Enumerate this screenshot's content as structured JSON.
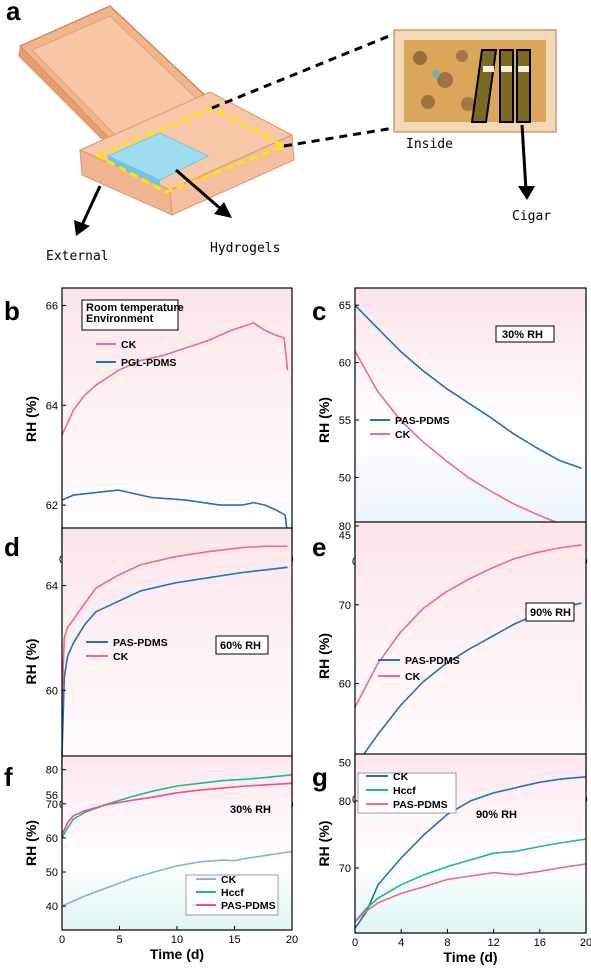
{
  "panel_a": {
    "label": "a",
    "labels": {
      "external": "External",
      "hydrogels": "Hydrogels",
      "inside": "Inside",
      "cigar": "Cigar"
    }
  },
  "colors": {
    "red": "#ee6d84",
    "blue": "#1e73be",
    "green": "#20b98a",
    "lightblue": "#8ab0e0",
    "pink": "#f0507a"
  },
  "chart_data": [
    {
      "panel": "b",
      "type": "line",
      "xlabel": "Time (d)",
      "ylabel": "RH (%)",
      "xlim": [
        0,
        20.4
      ],
      "ylim": [
        61.1,
        66.35
      ],
      "xticks": [
        0,
        5,
        10,
        15,
        20
      ],
      "yticks": [
        62,
        64,
        66
      ],
      "annotation": [
        "Room temperature",
        "Environment"
      ],
      "series": [
        {
          "name": "CK",
          "color": "#ee6d84",
          "x": [
            0,
            1,
            2,
            3,
            5,
            7,
            9,
            11,
            13,
            15,
            17,
            18,
            19,
            19.7,
            20
          ],
          "y": [
            63.4,
            63.9,
            64.2,
            64.4,
            64.7,
            64.9,
            65.0,
            65.15,
            65.3,
            65.5,
            65.65,
            65.5,
            65.4,
            65.35,
            64.7
          ]
        },
        {
          "name": "PGL-PDMS",
          "color": "#1e73be",
          "x": [
            0,
            1,
            3,
            5,
            8,
            11,
            14,
            16,
            17,
            18,
            19,
            19.8,
            20
          ],
          "y": [
            62.1,
            62.2,
            62.25,
            62.3,
            62.15,
            62.1,
            62.0,
            62.0,
            62.05,
            62.0,
            61.9,
            61.8,
            61.4
          ]
        }
      ],
      "legend": [
        "CK",
        "PGL-PDMS"
      ]
    },
    {
      "panel": "c",
      "type": "line",
      "xlabel": "Time (d)",
      "ylabel": "RH (%)",
      "xlim": [
        0,
        20.4
      ],
      "ylim": [
        43.5,
        66.5
      ],
      "xticks": [
        0,
        5,
        10,
        15,
        20
      ],
      "yticks": [
        45,
        50,
        55,
        60,
        65
      ],
      "annotation": [
        "30% RH"
      ],
      "series": [
        {
          "name": "PAS-PDMS",
          "color": "#1e73be",
          "x": [
            0,
            2,
            4,
            6,
            8,
            10,
            12,
            14,
            16,
            18,
            20
          ],
          "y": [
            65,
            63,
            61,
            59.3,
            57.8,
            56.5,
            55.2,
            53.8,
            52.6,
            51.5,
            50.8
          ]
        },
        {
          "name": "CK",
          "color": "#ee6d84",
          "x": [
            0,
            2,
            4,
            6,
            8,
            10,
            12,
            14,
            16,
            18,
            20
          ],
          "y": [
            61,
            57.5,
            55,
            53.1,
            51.5,
            50,
            48.8,
            47.7,
            46.8,
            46,
            45.4
          ]
        }
      ],
      "legend": [
        "PAS-PDMS",
        "CK"
      ]
    },
    {
      "panel": "d",
      "type": "line",
      "xlabel": "Time (d)",
      "ylabel": "RH (%)",
      "xlim": [
        0,
        20.4
      ],
      "ylim": [
        56,
        66.2
      ],
      "xticks": [
        0,
        5,
        10,
        15,
        20
      ],
      "yticks": [
        56,
        60,
        64
      ],
      "annotation": [
        "60% RH"
      ],
      "series": [
        {
          "name": "PAS-PDMS",
          "color": "#1e73be",
          "x": [
            0,
            0.2,
            0.5,
            1,
            2,
            3,
            5,
            7,
            10,
            13,
            16,
            18,
            20
          ],
          "y": [
            57.5,
            60.5,
            61.3,
            61.8,
            62.5,
            63.0,
            63.4,
            63.8,
            64.1,
            64.3,
            64.5,
            64.6,
            64.7
          ]
        },
        {
          "name": "CK",
          "color": "#ee6d84",
          "x": [
            0,
            0.2,
            0.5,
            1,
            2,
            3,
            5,
            7,
            10,
            13,
            16,
            18,
            20
          ],
          "y": [
            59.5,
            62.0,
            62.4,
            62.7,
            63.3,
            63.9,
            64.4,
            64.8,
            65.1,
            65.3,
            65.45,
            65.5,
            65.5
          ]
        }
      ],
      "legend": [
        "PAS-PDMS",
        "CK"
      ]
    },
    {
      "panel": "e",
      "type": "line",
      "xlabel": "Time (d)",
      "ylabel": "RH (%)",
      "xlim": [
        0,
        20.4
      ],
      "ylim": [
        46.5,
        80.5
      ],
      "xticks": [
        0,
        5,
        10,
        15,
        20
      ],
      "yticks": [
        50,
        60,
        70,
        80
      ],
      "annotation": [
        "90% RH"
      ],
      "series": [
        {
          "name": "PAS-PDMS",
          "color": "#1e73be",
          "x": [
            0,
            2,
            4,
            6,
            8,
            10,
            12,
            14,
            16,
            18,
            20
          ],
          "y": [
            49.5,
            53.5,
            57.2,
            60.2,
            62.5,
            64.3,
            65.9,
            67.5,
            68.8,
            69.6,
            70.2
          ]
        },
        {
          "name": "CK",
          "color": "#ee6d84",
          "x": [
            0,
            2,
            4,
            6,
            8,
            10,
            12,
            14,
            16,
            18,
            20
          ],
          "y": [
            57,
            62.5,
            66.5,
            69.5,
            71.6,
            73.2,
            74.6,
            75.8,
            76.6,
            77.2,
            77.6
          ]
        }
      ],
      "legend": [
        "PAS-PDMS",
        "CK"
      ]
    },
    {
      "panel": "f",
      "type": "line",
      "xlabel": "Time (d)",
      "ylabel": "RH (%)",
      "xlim": [
        0,
        20
      ],
      "ylim": [
        33,
        84
      ],
      "xticks": [
        0,
        5,
        10,
        15,
        20
      ],
      "yticks": [
        40,
        50,
        60,
        70,
        80
      ],
      "annotation": [
        "30% RH"
      ],
      "series": [
        {
          "name": "CK",
          "color": "#8ab0e0",
          "x": [
            0,
            2,
            4,
            6,
            8,
            10,
            12,
            14,
            15,
            16,
            18,
            20
          ],
          "y": [
            40,
            43,
            45.5,
            48,
            50,
            51.8,
            53,
            53.5,
            53.3,
            54,
            55,
            56
          ]
        },
        {
          "name": "Hccf",
          "color": "#20b98a",
          "x": [
            0,
            0.5,
            1,
            2,
            4,
            6,
            8,
            10,
            12,
            14,
            16,
            18,
            20
          ],
          "y": [
            60,
            63,
            65.5,
            67.5,
            70,
            72,
            73.8,
            75.2,
            76,
            76.8,
            77.2,
            77.8,
            78.5
          ]
        },
        {
          "name": "PAS-PDMS",
          "color": "#f0507a",
          "x": [
            0,
            0.5,
            1,
            2,
            4,
            6,
            8,
            10,
            12,
            14,
            16,
            18,
            20
          ],
          "y": [
            61,
            64.5,
            66.5,
            68,
            69.8,
            71,
            72,
            73.2,
            74,
            74.6,
            75.2,
            75.6,
            76
          ]
        }
      ],
      "legend": [
        "CK",
        "Hccf",
        "PAS-PDMS"
      ]
    },
    {
      "panel": "g",
      "type": "line",
      "xlabel": "Time (d)",
      "ylabel": "RH (%)",
      "xlim": [
        0,
        20
      ],
      "ylim": [
        60.3,
        87
      ],
      "xticks": [
        0,
        4,
        8,
        12,
        16,
        20
      ],
      "yticks": [
        70,
        80
      ],
      "annotation": [
        "90% RH"
      ],
      "series": [
        {
          "name": "CK",
          "color": "#1e73be",
          "x": [
            0,
            1,
            2,
            4,
            6,
            8,
            10,
            12,
            14,
            16,
            18,
            20
          ],
          "y": [
            61,
            63.5,
            67.5,
            71.5,
            75,
            78,
            80,
            81.2,
            82,
            82.8,
            83.3,
            83.6
          ]
        },
        {
          "name": "Hccf",
          "color": "#20b98a",
          "x": [
            0,
            1,
            2,
            4,
            6,
            8,
            10,
            12,
            14,
            16,
            18,
            20
          ],
          "y": [
            62,
            64,
            65.5,
            67.5,
            69,
            70.2,
            71.2,
            72.2,
            72.5,
            73.2,
            73.8,
            74.3
          ]
        },
        {
          "name": "PAS-PDMS",
          "color": "#ee6d84",
          "x": [
            0,
            1,
            2,
            4,
            6,
            8,
            10,
            12,
            14,
            16,
            18,
            20
          ],
          "y": [
            62,
            63.6,
            64.8,
            66.2,
            67.2,
            68.3,
            68.8,
            69.3,
            69,
            69.5,
            70.1,
            70.6
          ]
        }
      ],
      "legend": [
        "CK",
        "Hccf",
        "PAS-PDMS"
      ]
    }
  ]
}
